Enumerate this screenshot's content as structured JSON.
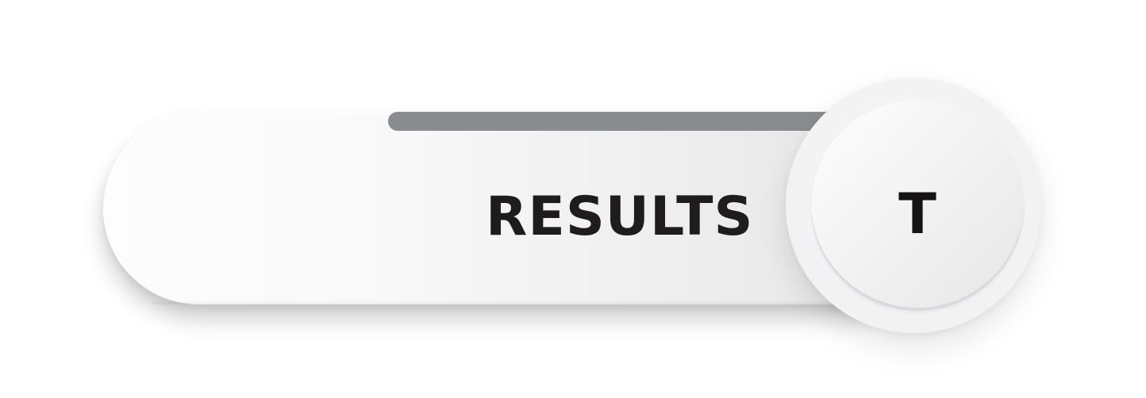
{
  "banner": {
    "label": "RESULTS"
  },
  "badge": {
    "letter": "T"
  },
  "colors": {
    "background": "#ffffff",
    "pill_light": "#fdfdfd",
    "pill_dark": "#e7e7e7",
    "tab": "#8b8c90",
    "text": "#1f1c1d"
  }
}
